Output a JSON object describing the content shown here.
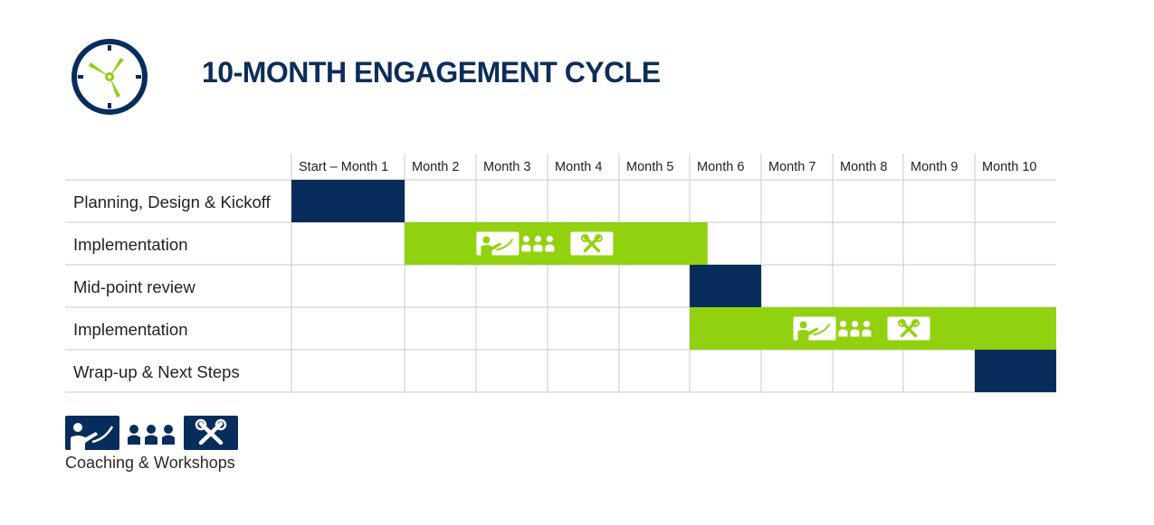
{
  "title": "10-MONTH ENGAGEMENT CYCLE",
  "colors": {
    "navy": "#062d5c",
    "green": "#92d10f",
    "grid": "#c9c9c9",
    "text": "#222222",
    "lime_accent": "#8fcf10"
  },
  "icons": [
    "clock-icon",
    "presenter-icon",
    "people-icon",
    "tools-icon"
  ],
  "legend": {
    "label": "Coaching & Workshops"
  },
  "chart_data": {
    "type": "gantt",
    "columns": [
      "Start – Month 1",
      "Month 2",
      "Month 3",
      "Month 4",
      "Month 5",
      "Month 6",
      "Month 7",
      "Month 8",
      "Month 9",
      "Month 10"
    ],
    "rows": [
      {
        "label": "Planning, Design & Kickoff",
        "start": 1,
        "end": 1,
        "color": "navy",
        "icons": false
      },
      {
        "label": "Implementation",
        "start": 2,
        "end": 6.25,
        "color": "green",
        "icons": true
      },
      {
        "label": "Mid-point review",
        "start": 6,
        "end": 6,
        "color": "navy",
        "icons": false
      },
      {
        "label": "Implementation",
        "start": 6,
        "end": 10,
        "color": "green",
        "icons": true
      },
      {
        "label": "Wrap-up & Next Steps",
        "start": 10,
        "end": 10,
        "color": "navy",
        "icons": false
      }
    ]
  }
}
